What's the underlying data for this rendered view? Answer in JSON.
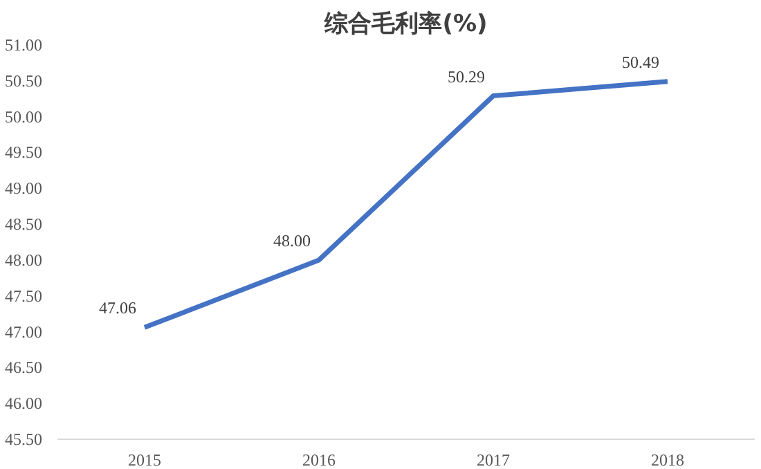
{
  "chart_data": {
    "type": "line",
    "title": "综合毛利率(%)",
    "categories": [
      "2015",
      "2016",
      "2017",
      "2018"
    ],
    "series": [
      {
        "color": "#4472c4",
        "values": [
          47.06,
          48.0,
          50.29,
          50.49
        ],
        "value_labels": [
          "47.06",
          "48.00",
          "50.29",
          "50.49"
        ]
      }
    ],
    "ylim": [
      45.5,
      51.0
    ],
    "yticks": [
      {
        "value": 45.5,
        "label": "45.50"
      },
      {
        "value": 46.0,
        "label": "46.00"
      },
      {
        "value": 46.5,
        "label": "46.50"
      },
      {
        "value": 47.0,
        "label": "47.00"
      },
      {
        "value": 47.5,
        "label": "47.50"
      },
      {
        "value": 48.0,
        "label": "48.00"
      },
      {
        "value": 48.5,
        "label": "48.50"
      },
      {
        "value": 49.0,
        "label": "49.00"
      },
      {
        "value": 49.5,
        "label": "49.50"
      },
      {
        "value": 50.0,
        "label": "50.00"
      },
      {
        "value": 50.5,
        "label": "50.50"
      },
      {
        "value": 51.0,
        "label": "51.00"
      }
    ],
    "grid": false,
    "marker": "none",
    "line_style": "solid"
  }
}
